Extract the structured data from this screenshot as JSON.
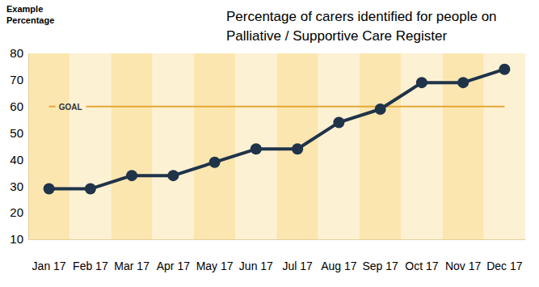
{
  "chart_data": {
    "type": "line",
    "title": "Percentage of carers identified for people on Palliative / Supportive Care Register",
    "y_label": "Example Percentage",
    "categories": [
      "Jan 17",
      "Feb 17",
      "Mar 17",
      "Apr 17",
      "May 17",
      "Jun 17",
      "Jul 17",
      "Aug 17",
      "Sep 17",
      "Oct 17",
      "Nov 17",
      "Dec 17"
    ],
    "values": [
      29,
      29,
      34,
      34,
      39,
      44,
      44,
      54,
      59,
      69,
      69,
      74
    ],
    "color": "#1f3349",
    "marker": "circle",
    "ylim": [
      10,
      80
    ],
    "yticks": [
      10,
      20,
      30,
      40,
      50,
      60,
      70,
      80
    ],
    "goal": {
      "label": "GOAL",
      "value": 60
    }
  }
}
